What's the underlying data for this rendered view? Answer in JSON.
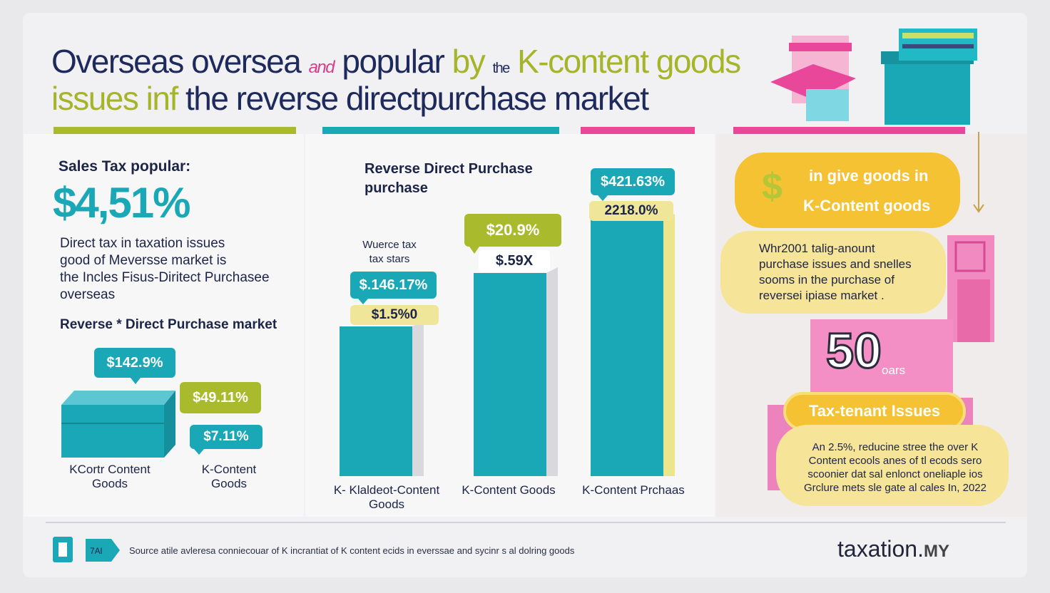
{
  "header": {
    "line1_a": "Overseas oversea",
    "line1_and": "and",
    "line1_b": "popular",
    "line1_by": "by",
    "line1_the": "the",
    "line1_c": "K-content goods",
    "line2_a": "issues inf",
    "line2_b": "the reverse directpurchase market"
  },
  "left_panel": {
    "heading": "Sales Tax popular:",
    "big_value": "$4,51%",
    "description": [
      "Direct tax in taxation issues",
      "good of Meversse market is",
      "the Incles Fisus-Diritect Purchasee",
      "overseas"
    ],
    "subheading": "Reverse * Direct Purchase market",
    "callouts": [
      "$142.9%",
      "$49.11%",
      "$7.11%"
    ],
    "labels": [
      "KCortr Content\nGoods",
      "K-Content\nGoods"
    ]
  },
  "middle_panel": {
    "heading_line1": "Reverse Direct Purchase",
    "heading_line2": "purchase",
    "note_line1": "Wuerce tax",
    "note_line2": "tax stars",
    "callouts": {
      "bar1_top": "$.146.17%",
      "bar1_sub": "$1.5%0",
      "bar2_top": "$20.9%",
      "bar2_sub": "$.59X",
      "bar3_top": "$421.63%",
      "bar3_sub": "2218.0%"
    },
    "bar_labels": [
      "K- Klaldeot-Content\nGoods",
      "K-Content Goods",
      "K-Content Prchaas"
    ]
  },
  "right_panel": {
    "pill_top_line1": "in give goods in",
    "pill_top_line2": "K-Content goods",
    "pill_mid": [
      "Whr2001 talig-anount",
      "purchase issues and snelles",
      "sooms in the purchase of",
      "reversei ipiase market ."
    ],
    "big_number": "50",
    "big_number_suffix": "oars",
    "badge": "Tax-tenant Issues",
    "bottom_text": [
      "An 2.5%, reducine stree the over K",
      "Content ecools anes of tl ecods sero",
      "scoonier dat sal enlonct oneliaple ios",
      "Grclure mets sle gate al cales In, 2022"
    ]
  },
  "footer": {
    "source": "Source atile avleresa conniecouar of K incrantiat of K content ecids in everssae and sycinr s al dolring goods",
    "brand": "taxation.",
    "brand_suffix": "MY"
  },
  "chart_data": {
    "type": "bar",
    "categories": [
      "K- Klaldeot-Content Goods",
      "K-Content Goods",
      "K-Content Prchaas"
    ],
    "series": [
      {
        "values": [
          1.4,
          1.9,
          2.4
        ]
      }
    ],
    "title": "Reverse Direct Purchase purchase"
  },
  "colors": {
    "navy": "#1f2a5c",
    "teal": "#1aa8b6",
    "lime": "#a9bb2d",
    "pink": "#e8479a",
    "yellow": "#f4c232",
    "pale_yellow": "#f5e79a"
  }
}
